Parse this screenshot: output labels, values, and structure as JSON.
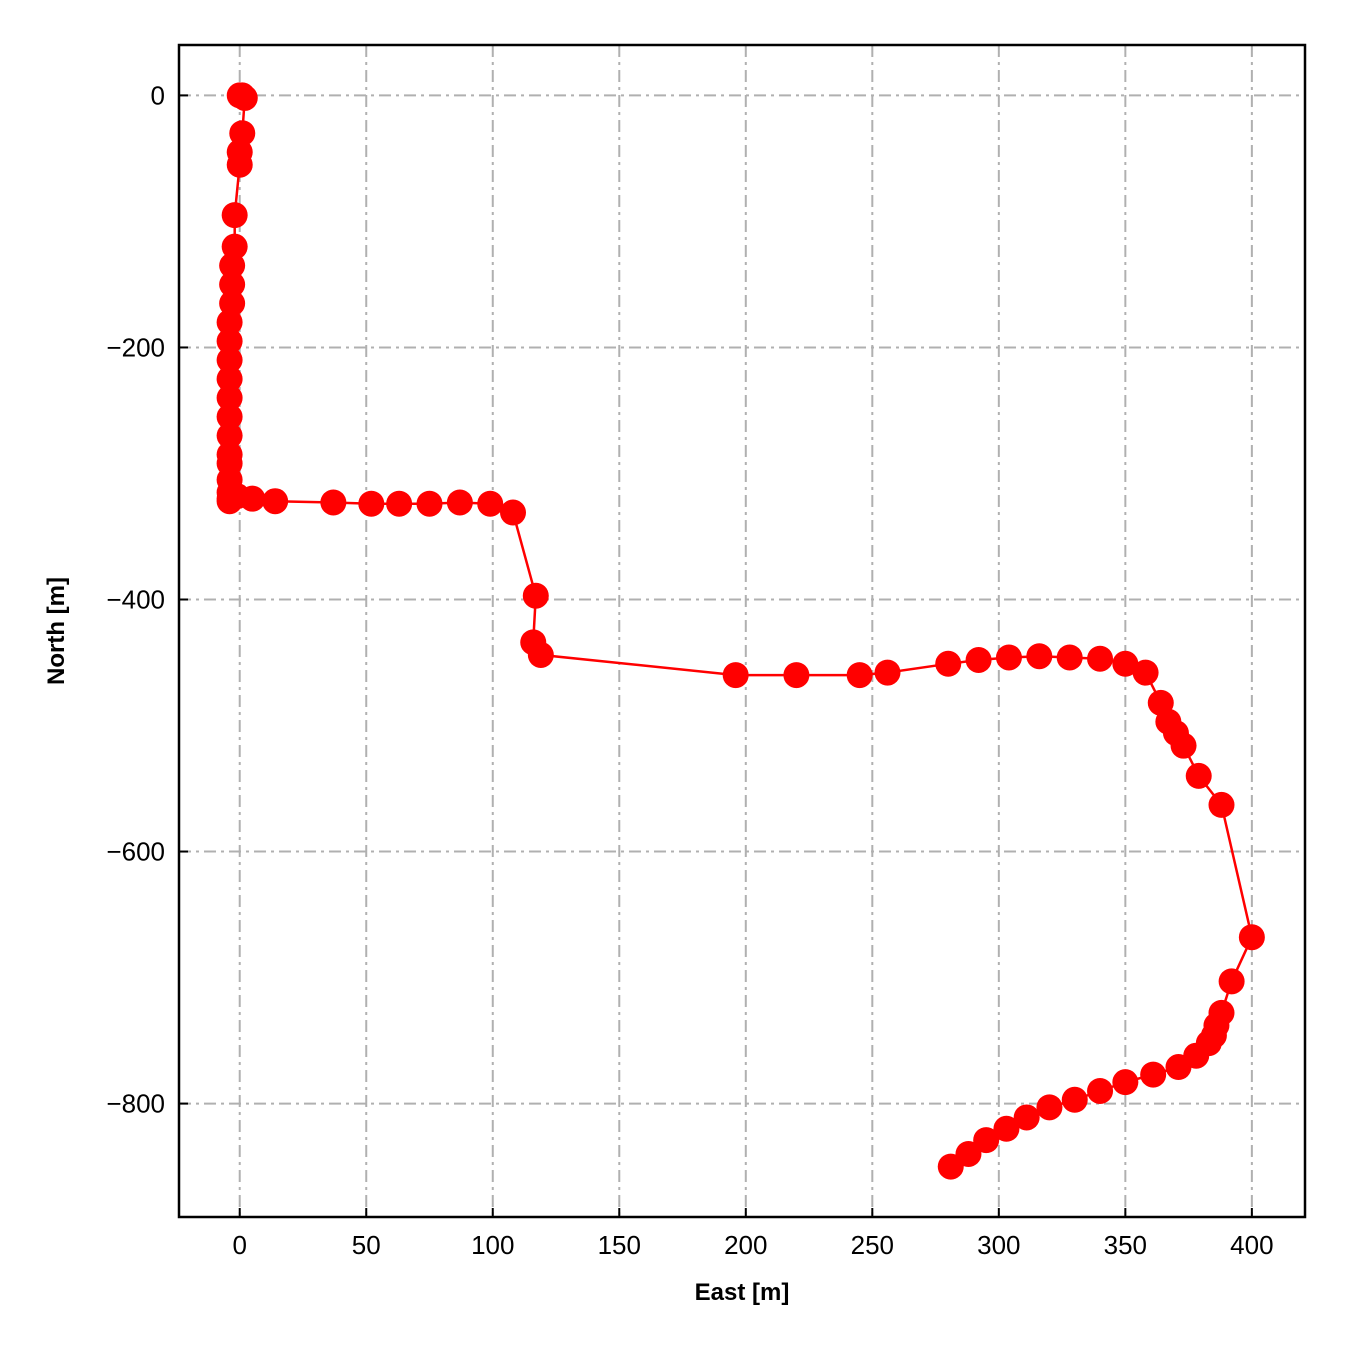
{
  "chart_data": {
    "type": "scatter",
    "title": "",
    "xlabel": "East [m]",
    "ylabel": "North [m]",
    "xlim": [
      -24,
      421
    ],
    "ylim": [
      -890,
      40
    ],
    "xticks": [
      0,
      50,
      100,
      150,
      200,
      250,
      300,
      350,
      400
    ],
    "yticks": [
      0,
      -200,
      -400,
      -600,
      -800
    ],
    "xtick_labels": [
      "0",
      "50",
      "100",
      "150",
      "200",
      "250",
      "300",
      "350",
      "400"
    ],
    "ytick_labels": [
      "0",
      "−200",
      "−400",
      "−600",
      "−800"
    ],
    "grid": true,
    "line_color": "#ff0000",
    "marker_color": "#ff0000",
    "series": [
      {
        "x": [
          0,
          1,
          2,
          1,
          0,
          0,
          -2,
          -2,
          -3,
          -3,
          -3,
          -4,
          -4,
          -4,
          -4,
          -4,
          -4,
          -4,
          -4,
          -4,
          -4,
          -4,
          -4,
          -4,
          -3,
          -1,
          5,
          14,
          37,
          52,
          63,
          75,
          87,
          99,
          108,
          117,
          116,
          119,
          196,
          220,
          245,
          256,
          280,
          292,
          304,
          316,
          328,
          340,
          350,
          358,
          364,
          367,
          370,
          373,
          379,
          388,
          400,
          392,
          388,
          386,
          385,
          383,
          378,
          371,
          361,
          350,
          340,
          330,
          320,
          311,
          303,
          295,
          288,
          281
        ],
        "y": [
          0,
          0,
          -2,
          -30,
          -45,
          -55,
          -95,
          -120,
          -135,
          -150,
          -165,
          -180,
          -195,
          -210,
          -225,
          -240,
          -255,
          -270,
          -285,
          -292,
          -305,
          -315,
          -320,
          -322,
          -318,
          -318,
          -320,
          -322,
          -323,
          -324,
          -324,
          -324,
          -323,
          -324,
          -331,
          -397,
          -434,
          -444,
          -460,
          -460,
          -460,
          -458,
          -451,
          -448,
          -446,
          -445,
          -446,
          -447,
          -451,
          -458,
          -482,
          -497,
          -506,
          -516,
          -540,
          -563,
          -668,
          -703,
          -728,
          -738,
          -746,
          -752,
          -762,
          -771,
          -777,
          -783,
          -790,
          -797,
          -803,
          -811,
          -820,
          -829,
          -840,
          -850
        ]
      }
    ]
  }
}
